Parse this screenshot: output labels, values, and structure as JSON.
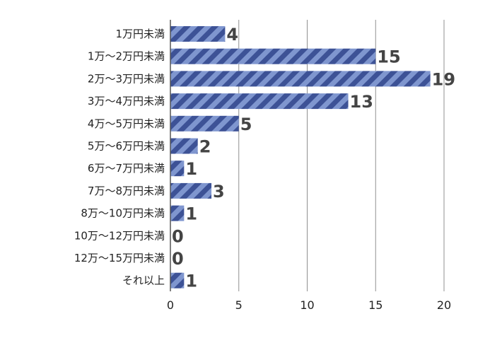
{
  "chart_data": {
    "type": "bar",
    "orientation": "horizontal",
    "categories": [
      "1万円未満",
      "1万〜2万円未満",
      "2万〜3万円未満",
      "3万〜4万円未満",
      "4万〜5万円未満",
      "5万〜6万円未満",
      "6万〜7万円未満",
      "7万〜8万円未満",
      "8万〜10万円未満",
      "10万〜12万円未満",
      "12万〜15万円未満",
      "それ以上"
    ],
    "values": [
      4,
      15,
      19,
      13,
      5,
      2,
      1,
      3,
      1,
      0,
      0,
      1
    ],
    "data_labels": [
      "4",
      "15",
      "19",
      "13",
      "5",
      "2",
      "1",
      "3",
      "1",
      "0",
      "0",
      "1"
    ],
    "xlim": [
      0,
      20
    ],
    "x_ticks": [
      0,
      5,
      10,
      15,
      20
    ],
    "x_tick_labels": [
      "0",
      "5",
      "10",
      "15",
      "20"
    ],
    "grid": "vertical",
    "legend": "none",
    "colors": {
      "bar_fill": "#7f96cf",
      "bar_stripe": "#3d5296",
      "grid": "#909090",
      "axis": "#555555",
      "data_label": "#444444",
      "text": "#222222"
    }
  }
}
